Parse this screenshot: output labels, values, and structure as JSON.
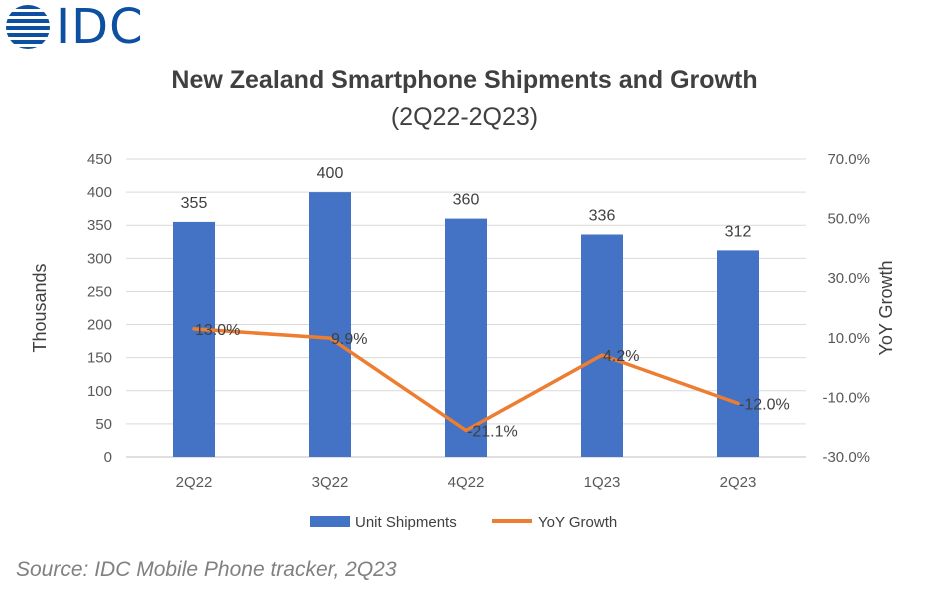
{
  "brand": {
    "logo_text": "IDC",
    "logo_color": "#0d4fa0",
    "logo_icon": "globe-icon"
  },
  "title": "New Zealand Smartphone Shipments and Growth",
  "subtitle": "(2Q22-2Q23)",
  "source": "Source: IDC Mobile Phone tracker, 2Q23",
  "chart_data": {
    "type": "bar",
    "categories": [
      "2Q22",
      "3Q22",
      "4Q22",
      "1Q23",
      "2Q23"
    ],
    "series": [
      {
        "name": "Unit Shipments",
        "type": "bar",
        "axis": "left",
        "color": "#4472c4",
        "values": [
          355,
          400,
          360,
          336,
          312
        ],
        "labels": [
          "355",
          "400",
          "360",
          "336",
          "312"
        ]
      },
      {
        "name": "YoY Growth",
        "type": "line",
        "axis": "right",
        "color": "#ed7d31",
        "values": [
          13.0,
          9.9,
          -21.1,
          4.2,
          -12.0
        ],
        "labels": [
          "13.0%",
          "9.9%",
          "-21.1%",
          "4.2%",
          "-12.0%"
        ]
      }
    ],
    "ylabel": "Thousands",
    "y2label": "YoY Growth",
    "ylim": [
      0,
      450
    ],
    "yticks": [
      "0",
      "50",
      "100",
      "150",
      "200",
      "250",
      "300",
      "350",
      "400",
      "450"
    ],
    "y2lim": [
      -30,
      70
    ],
    "y2ticks": [
      "-30.0%",
      "-10.0%",
      "10.0%",
      "30.0%",
      "50.0%",
      "70.0%"
    ],
    "grid": true,
    "legend": "bottom"
  }
}
